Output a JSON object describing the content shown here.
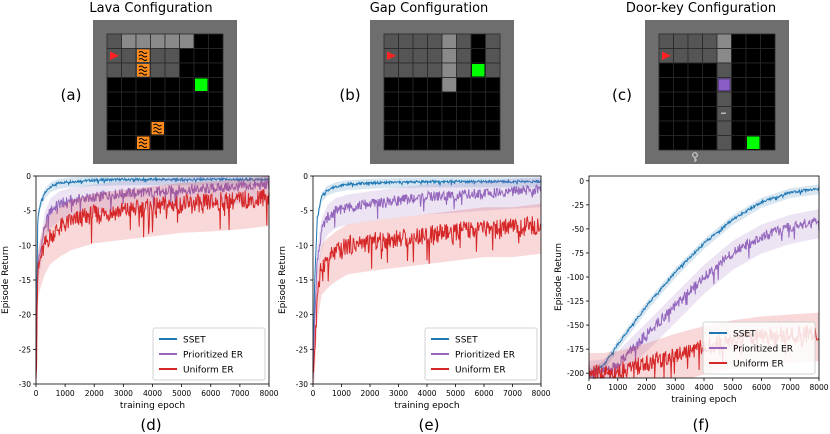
{
  "env_titles": [
    "Lava Configuration",
    "Gap Configuration",
    "Door-key Configuration"
  ],
  "env_labels": [
    "(a)",
    "(b)",
    "(c)"
  ],
  "colors": {
    "sset": "#1f77b4",
    "prioritized": "#9467bd",
    "uniform": "#d62728",
    "grid_floor": "#000000",
    "grid_wall": "#555555",
    "grid_line": "#2a2a2a",
    "goal": "#00ff00",
    "lava": "#ff8c1a",
    "agent": "#ff2222",
    "door": "#8a5cc7"
  },
  "icons": [
    "agent-triangle-icon",
    "lava-tile-icon",
    "goal-tile-icon",
    "door-tile-icon",
    "key-icon"
  ],
  "legend": [
    "SSET",
    "Prioritized ER",
    "Uniform ER"
  ],
  "chart_data": [
    {
      "type": "line",
      "panel_label": "(d)",
      "xlabel": "training epoch",
      "ylabel": "Episode Return",
      "xlim": [
        0,
        8000
      ],
      "ylim": [
        -30,
        0
      ],
      "xticks": [
        0,
        1000,
        2000,
        3000,
        4000,
        5000,
        6000,
        7000,
        8000
      ],
      "yticks": [
        0,
        -5,
        -10,
        -15,
        -20,
        -25,
        -30
      ],
      "legend_position": "lower-right",
      "series": [
        {
          "name": "SSET",
          "x": [
            0,
            60,
            150,
            300,
            500,
            800,
            1200,
            2000,
            3000,
            4000,
            5000,
            6000,
            7000,
            8000
          ],
          "y": [
            -28,
            -6,
            -4,
            -2.5,
            -1.5,
            -1.0,
            -0.8,
            -0.6,
            -0.5,
            -0.5,
            -0.5,
            -0.5,
            -0.5,
            -0.5
          ]
        },
        {
          "name": "Prioritized ER",
          "x": [
            0,
            60,
            150,
            300,
            500,
            800,
            1200,
            2000,
            3000,
            4000,
            5000,
            6000,
            7000,
            8000
          ],
          "y": [
            -28,
            -13,
            -11,
            -7,
            -5,
            -4,
            -3.5,
            -3,
            -2.5,
            -2.3,
            -2,
            -1.8,
            -1.5,
            -1.3
          ]
        },
        {
          "name": "Uniform ER",
          "x": [
            0,
            60,
            150,
            300,
            500,
            800,
            1200,
            2000,
            3000,
            4000,
            5000,
            6000,
            7000,
            8000
          ],
          "y": [
            -28,
            -14,
            -12,
            -10,
            -8.5,
            -7.5,
            -6.5,
            -5.5,
            -5,
            -4.5,
            -4,
            -3.8,
            -3.5,
            -3
          ]
        }
      ]
    },
    {
      "type": "line",
      "panel_label": "(e)",
      "xlabel": "training epoch",
      "ylabel": "Episode Return",
      "xlim": [
        0,
        8000
      ],
      "ylim": [
        -30,
        0
      ],
      "xticks": [
        0,
        1000,
        2000,
        3000,
        4000,
        5000,
        6000,
        7000,
        8000
      ],
      "yticks": [
        0,
        -5,
        -10,
        -15,
        -20,
        -25,
        -30
      ],
      "legend_position": "lower-right",
      "series": [
        {
          "name": "SSET",
          "x": [
            0,
            60,
            150,
            300,
            500,
            800,
            1200,
            2000,
            3000,
            4000,
            5000,
            6000,
            7000,
            8000
          ],
          "y": [
            -29,
            -15,
            -6,
            -3,
            -2,
            -1.5,
            -1.2,
            -1,
            -0.9,
            -0.8,
            -0.8,
            -0.8,
            -0.8,
            -0.8
          ]
        },
        {
          "name": "Prioritized ER",
          "x": [
            0,
            60,
            150,
            300,
            500,
            800,
            1200,
            2000,
            3000,
            4000,
            5000,
            6000,
            7000,
            8000
          ],
          "y": [
            -29,
            -20,
            -12,
            -8,
            -6,
            -5,
            -4.5,
            -4,
            -3.5,
            -3,
            -2.8,
            -2.5,
            -2.2,
            -2
          ]
        },
        {
          "name": "Uniform ER",
          "x": [
            0,
            60,
            150,
            300,
            500,
            800,
            1200,
            2000,
            3000,
            4000,
            5000,
            6000,
            7000,
            8000
          ],
          "y": [
            -29,
            -25,
            -17,
            -13,
            -12,
            -11,
            -10,
            -9.5,
            -9,
            -8.5,
            -8,
            -7.5,
            -7.5,
            -7
          ]
        }
      ]
    },
    {
      "type": "line",
      "panel_label": "(f)",
      "xlabel": "training epoch",
      "ylabel": "Episode Return",
      "xlim": [
        0,
        8000
      ],
      "ylim": [
        -205,
        5
      ],
      "xticks": [
        0,
        1000,
        2000,
        3000,
        4000,
        5000,
        6000,
        7000,
        8000
      ],
      "yticks": [
        0,
        -25,
        -50,
        -75,
        -100,
        -125,
        -150,
        -175,
        -200
      ],
      "legend_position": "lower-right",
      "series": [
        {
          "name": "SSET",
          "x": [
            0,
            500,
            1000,
            2000,
            3000,
            4000,
            5000,
            6000,
            7000,
            8000
          ],
          "y": [
            -200,
            -192,
            -170,
            -130,
            -95,
            -65,
            -40,
            -22,
            -12,
            -8
          ]
        },
        {
          "name": "Prioritized ER",
          "x": [
            0,
            500,
            1000,
            2000,
            3000,
            4000,
            5000,
            6000,
            7000,
            8000
          ],
          "y": [
            -200,
            -198,
            -190,
            -160,
            -130,
            -100,
            -75,
            -58,
            -48,
            -42
          ]
        },
        {
          "name": "Uniform ER",
          "x": [
            0,
            500,
            1000,
            2000,
            3000,
            4000,
            5000,
            6000,
            7000,
            8000
          ],
          "y": [
            -200,
            -200,
            -198,
            -190,
            -180,
            -172,
            -166,
            -162,
            -160,
            -158
          ]
        }
      ]
    }
  ]
}
